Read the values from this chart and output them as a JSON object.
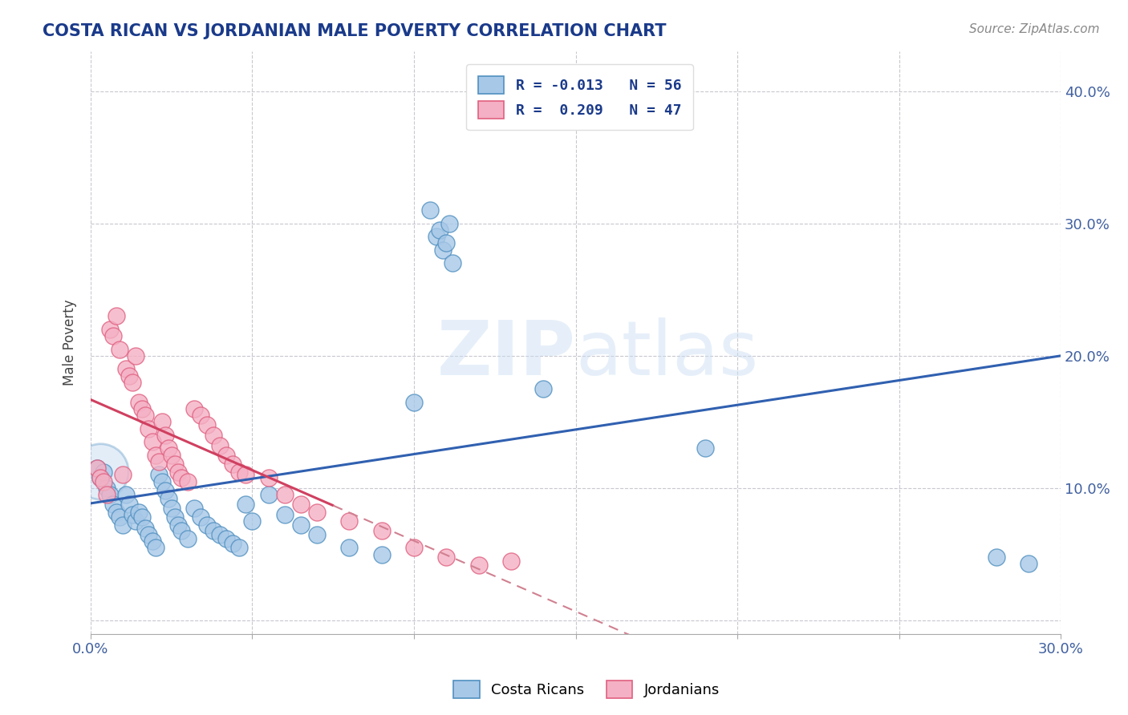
{
  "title": "COSTA RICAN VS JORDANIAN MALE POVERTY CORRELATION CHART",
  "source": "Source: ZipAtlas.com",
  "ylabel": "Male Poverty",
  "xlim": [
    0.0,
    0.3
  ],
  "ylim": [
    -0.01,
    0.43
  ],
  "legend_r1": "R = -0.013   N = 56",
  "legend_r2": "R =  0.209   N = 47",
  "costa_ricans_color": "#a8c8e8",
  "jordanians_color": "#f4b0c4",
  "costa_ricans_edge": "#5090c0",
  "jordanians_edge": "#e06080",
  "trend_blue": "#3060b0",
  "trend_pink": "#d04060",
  "trend_dashed_color": "#d08090",
  "watermark": "ZIPatlas",
  "background_color": "#ffffff",
  "grid_color": "#c8c8d0",
  "title_color": "#1a3a8a",
  "source_color": "#888888",
  "tick_color": "#4060a0",
  "cr_x": [
    0.002,
    0.003,
    0.004,
    0.005,
    0.006,
    0.007,
    0.008,
    0.009,
    0.01,
    0.011,
    0.012,
    0.013,
    0.014,
    0.015,
    0.016,
    0.017,
    0.018,
    0.019,
    0.02,
    0.021,
    0.022,
    0.023,
    0.024,
    0.025,
    0.026,
    0.027,
    0.028,
    0.03,
    0.032,
    0.034,
    0.036,
    0.038,
    0.04,
    0.042,
    0.044,
    0.046,
    0.048,
    0.05,
    0.055,
    0.06,
    0.065,
    0.07,
    0.08,
    0.09,
    0.1,
    0.105,
    0.107,
    0.108,
    0.109,
    0.11,
    0.111,
    0.112,
    0.14,
    0.19,
    0.28,
    0.29
  ],
  "cr_y": [
    0.115,
    0.108,
    0.112,
    0.1,
    0.095,
    0.088,
    0.082,
    0.078,
    0.072,
    0.095,
    0.088,
    0.08,
    0.075,
    0.082,
    0.078,
    0.07,
    0.065,
    0.06,
    0.055,
    0.11,
    0.105,
    0.098,
    0.092,
    0.085,
    0.078,
    0.072,
    0.068,
    0.062,
    0.085,
    0.078,
    0.072,
    0.068,
    0.065,
    0.062,
    0.058,
    0.055,
    0.088,
    0.075,
    0.095,
    0.08,
    0.072,
    0.065,
    0.055,
    0.05,
    0.165,
    0.31,
    0.29,
    0.295,
    0.28,
    0.285,
    0.3,
    0.27,
    0.175,
    0.13,
    0.048,
    0.043
  ],
  "jo_x": [
    0.002,
    0.003,
    0.004,
    0.005,
    0.006,
    0.007,
    0.008,
    0.009,
    0.01,
    0.011,
    0.012,
    0.013,
    0.014,
    0.015,
    0.016,
    0.017,
    0.018,
    0.019,
    0.02,
    0.021,
    0.022,
    0.023,
    0.024,
    0.025,
    0.026,
    0.027,
    0.028,
    0.03,
    0.032,
    0.034,
    0.036,
    0.038,
    0.04,
    0.042,
    0.044,
    0.046,
    0.048,
    0.055,
    0.06,
    0.065,
    0.07,
    0.08,
    0.09,
    0.1,
    0.11,
    0.12,
    0.13
  ],
  "jo_y": [
    0.115,
    0.108,
    0.105,
    0.095,
    0.22,
    0.215,
    0.23,
    0.205,
    0.11,
    0.19,
    0.185,
    0.18,
    0.2,
    0.165,
    0.16,
    0.155,
    0.145,
    0.135,
    0.125,
    0.12,
    0.15,
    0.14,
    0.13,
    0.125,
    0.118,
    0.112,
    0.108,
    0.105,
    0.16,
    0.155,
    0.148,
    0.14,
    0.132,
    0.125,
    0.118,
    0.112,
    0.11,
    0.108,
    0.095,
    0.088,
    0.082,
    0.075,
    0.068,
    0.055,
    0.048,
    0.042,
    0.045
  ]
}
